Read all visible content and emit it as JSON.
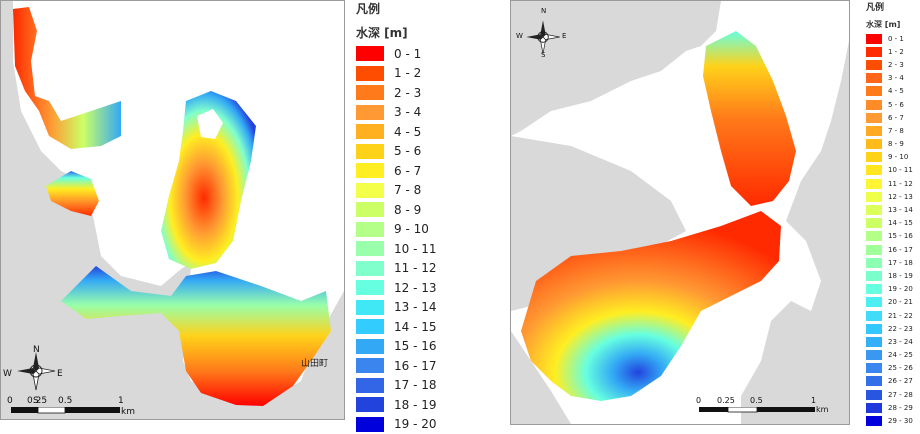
{
  "left_map": {
    "place_label": "山田町",
    "scale": {
      "ticks": [
        "0",
        "0.25",
        "0.5",
        "1"
      ],
      "unit": "km"
    },
    "compass": {
      "n": "N",
      "s": "S",
      "e": "E",
      "w": "W"
    }
  },
  "right_map": {
    "scale": {
      "ticks": [
        "0",
        "0.25",
        "0.5",
        "1"
      ],
      "unit": "km"
    },
    "compass": {
      "n": "N",
      "s": "S",
      "e": "E",
      "w": "W"
    }
  },
  "legend_left": {
    "title": "凡例",
    "subtitle": "水深 [m]",
    "items": [
      {
        "label": "0 - 1",
        "color": "#ff0000"
      },
      {
        "label": "1 - 2",
        "color": "#ff4d00"
      },
      {
        "label": "2 - 3",
        "color": "#ff7a1a"
      },
      {
        "label": "3 - 4",
        "color": "#ff9933"
      },
      {
        "label": "4 - 5",
        "color": "#ffb020"
      },
      {
        "label": "5 - 6",
        "color": "#ffd21a"
      },
      {
        "label": "6 - 7",
        "color": "#ffee22"
      },
      {
        "label": "7 - 8",
        "color": "#f4ff4a"
      },
      {
        "label": "8 - 9",
        "color": "#ccff66"
      },
      {
        "label": "9 - 10",
        "color": "#b3ff88"
      },
      {
        "label": "10 - 11",
        "color": "#99ffaa"
      },
      {
        "label": "11 - 12",
        "color": "#80ffcc"
      },
      {
        "label": "12 - 13",
        "color": "#66ffe0"
      },
      {
        "label": "13 - 14",
        "color": "#40e8f5"
      },
      {
        "label": "14 - 15",
        "color": "#33ccff"
      },
      {
        "label": "15 - 16",
        "color": "#33a8f5"
      },
      {
        "label": "16 - 17",
        "color": "#3b86ee"
      },
      {
        "label": "17 - 18",
        "color": "#3366e6"
      },
      {
        "label": "18 - 19",
        "color": "#2244dd"
      },
      {
        "label": "19 - 20",
        "color": "#0000dd"
      }
    ]
  },
  "legend_right": {
    "title": "凡例",
    "subtitle": "水深 [m]",
    "items": [
      {
        "label": "0 - 1",
        "color": "#ff0000"
      },
      {
        "label": "1 - 2",
        "color": "#ff2a00"
      },
      {
        "label": "2 - 3",
        "color": "#ff4d00"
      },
      {
        "label": "3 - 4",
        "color": "#ff661a"
      },
      {
        "label": "4 - 5",
        "color": "#ff7a1a"
      },
      {
        "label": "5 - 6",
        "color": "#ff8c26"
      },
      {
        "label": "6 - 7",
        "color": "#ff9933"
      },
      {
        "label": "7 - 8",
        "color": "#ffaa22"
      },
      {
        "label": "8 - 9",
        "color": "#ffbb1a"
      },
      {
        "label": "9 - 10",
        "color": "#ffd21a"
      },
      {
        "label": "10 - 11",
        "color": "#ffe61e"
      },
      {
        "label": "11 - 12",
        "color": "#fff533"
      },
      {
        "label": "12 - 13",
        "color": "#f0ff4a"
      },
      {
        "label": "13 - 14",
        "color": "#dcff5a"
      },
      {
        "label": "14 - 15",
        "color": "#ccff66"
      },
      {
        "label": "15 - 16",
        "color": "#b3ff88"
      },
      {
        "label": "16 - 17",
        "color": "#a0ff99"
      },
      {
        "label": "17 - 18",
        "color": "#8cffb3"
      },
      {
        "label": "18 - 19",
        "color": "#7affcc"
      },
      {
        "label": "19 - 20",
        "color": "#66ffe0"
      },
      {
        "label": "20 - 21",
        "color": "#4deef0"
      },
      {
        "label": "21 - 22",
        "color": "#40dcf8"
      },
      {
        "label": "22 - 23",
        "color": "#33c8ff"
      },
      {
        "label": "23 - 24",
        "color": "#33b0f8"
      },
      {
        "label": "24 - 25",
        "color": "#3a98f0"
      },
      {
        "label": "25 - 26",
        "color": "#3b86ee"
      },
      {
        "label": "26 - 27",
        "color": "#3370e8"
      },
      {
        "label": "27 - 28",
        "color": "#2a55e0"
      },
      {
        "label": "28 - 29",
        "color": "#1e38dc"
      },
      {
        "label": "29 - 30",
        "color": "#0000dd"
      }
    ]
  }
}
